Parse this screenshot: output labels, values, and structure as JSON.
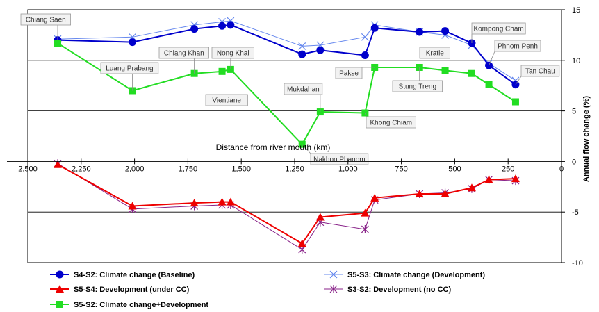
{
  "chart_data": {
    "type": "line",
    "xlabel": "Distance from river mouth (km)",
    "ylabel": "Annual flow change (%)",
    "xlim": [
      2500,
      0
    ],
    "ylim": [
      -10,
      15
    ],
    "x_ticks": [
      "2,500",
      "2,250",
      "2,000",
      "1,750",
      "1,500",
      "1,250",
      "1,000",
      "750",
      "500",
      "250",
      "0"
    ],
    "y_ticks": [
      "15",
      "10",
      "5",
      "0",
      "-5",
      "-10"
    ],
    "grid": "horizontal at 10, 5 and -5",
    "legend_position": "bottom",
    "stations": [
      {
        "name": "Chiang Saen",
        "x": 2360
      },
      {
        "name": "Luang Prabang",
        "x": 2010
      },
      {
        "name": "Chiang Khan",
        "x": 1720
      },
      {
        "name": "Vientiane",
        "x": 1590
      },
      {
        "name": "Nong Khai",
        "x": 1550
      },
      {
        "name": "Nakhon Phanom",
        "x": 1215
      },
      {
        "name": "Mukdahan",
        "x": 1130
      },
      {
        "name": "Khong Chiam",
        "x": 920
      },
      {
        "name": "Pakse",
        "x": 875
      },
      {
        "name": "Stung Treng",
        "x": 665
      },
      {
        "name": "Kratie",
        "x": 545
      },
      {
        "name": "Kompong Cham",
        "x": 420
      },
      {
        "name": "Phnom Penh",
        "x": 340
      },
      {
        "name": "Tan Chau",
        "x": 215
      }
    ],
    "series": [
      {
        "name": "S4-S2: Climate change (Baseline)",
        "color": "#0000cc",
        "marker": "circle",
        "x": [
          2360,
          2010,
          1720,
          1590,
          1550,
          1215,
          1130,
          920,
          875,
          665,
          545,
          420,
          340,
          215
        ],
        "values": [
          12.0,
          11.8,
          13.1,
          13.4,
          13.5,
          10.6,
          11.0,
          10.5,
          13.2,
          12.8,
          12.9,
          11.7,
          9.5,
          7.6
        ]
      },
      {
        "name": "S5-S3: Climate change (Development)",
        "color": "#6688ee",
        "marker": "cross",
        "x": [
          2360,
          2010,
          1720,
          1590,
          1550,
          1215,
          1130,
          920,
          875,
          665,
          545,
          420,
          340,
          215
        ],
        "values": [
          12.1,
          12.3,
          13.5,
          13.8,
          13.9,
          11.4,
          11.5,
          12.3,
          13.5,
          12.8,
          12.5,
          11.5,
          9.7,
          8.0
        ]
      },
      {
        "name": "S5-S4: Development (under CC)",
        "color": "#ee0000",
        "marker": "triangle",
        "x": [
          2360,
          2010,
          1720,
          1590,
          1550,
          1215,
          1130,
          920,
          875,
          665,
          545,
          420,
          340,
          215
        ],
        "values": [
          -0.3,
          -4.4,
          -4.1,
          -4.0,
          -4.0,
          -8.1,
          -5.5,
          -5.1,
          -3.6,
          -3.2,
          -3.2,
          -2.6,
          -1.8,
          -1.7
        ]
      },
      {
        "name": "S3-S2: Development (no CC)",
        "color": "#882288",
        "marker": "star",
        "x": [
          2360,
          2010,
          1720,
          1590,
          1550,
          1215,
          1130,
          920,
          875,
          665,
          545,
          420,
          340,
          215
        ],
        "values": [
          -0.2,
          -4.7,
          -4.4,
          -4.3,
          -4.3,
          -8.7,
          -6.0,
          -6.7,
          -3.8,
          -3.2,
          -3.1,
          -2.7,
          -1.8,
          -1.9
        ]
      },
      {
        "name": "S5-S2: Climate change+Development",
        "color": "#22dd22",
        "marker": "square",
        "x": [
          2360,
          2010,
          1720,
          1590,
          1550,
          1215,
          1130,
          920,
          875,
          665,
          545,
          420,
          340,
          215
        ],
        "values": [
          11.7,
          7.0,
          8.7,
          8.9,
          9.1,
          1.7,
          4.9,
          4.8,
          9.3,
          9.3,
          9.0,
          8.7,
          7.6,
          5.9
        ]
      }
    ]
  }
}
